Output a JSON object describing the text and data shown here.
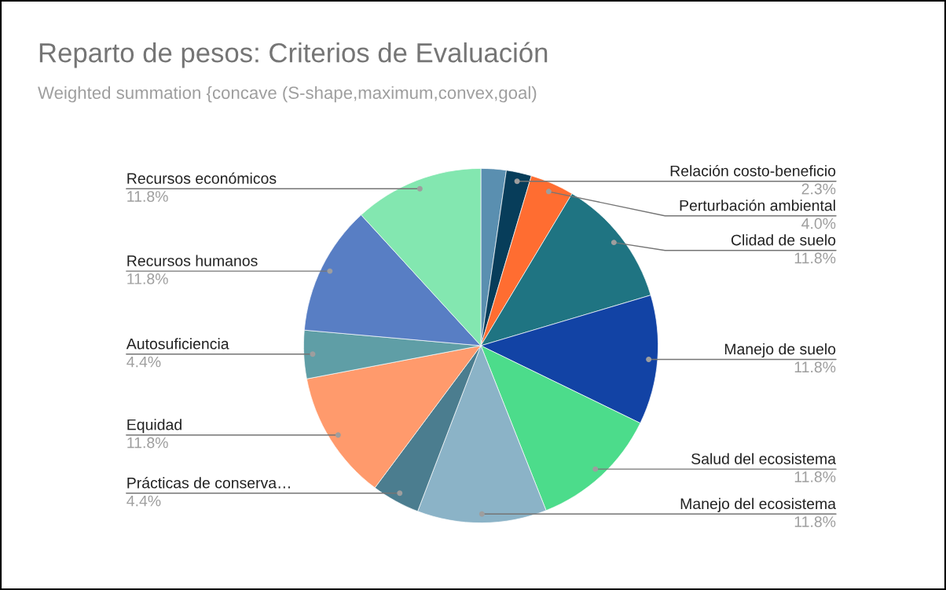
{
  "chart_data": {
    "type": "pie",
    "title": "Reparto de pesos: Criterios de Evaluación",
    "subtitle": "Weighted summation {concave (S-shape,maximum,convex,goal)",
    "categories": [
      null,
      "Relación costo-beneficio",
      "Perturbación ambiental",
      "Clidad de suelo",
      "Manejo de suelo",
      "Salud del ecosistema",
      "Manejo del ecosistema",
      "Prácticas de conserva…",
      "Equidad",
      "Autosuficiencia",
      "Recursos humanos",
      "Recursos económicos"
    ],
    "values": [
      2.3,
      2.3,
      4.0,
      11.8,
      11.8,
      11.8,
      11.8,
      4.4,
      11.8,
      4.4,
      11.8,
      11.8
    ],
    "colors": [
      "#5a8fb0",
      "#073d5a",
      "#ff6d31",
      "#1f7482",
      "#1243a5",
      "#4cdc8b",
      "#8bb3c7",
      "#4b7d8f",
      "#ff9a6c",
      "#5f9ea6",
      "#587ec4",
      "#83e7b0"
    ],
    "value_labels": [
      null,
      "2.3%",
      "4.0%",
      "11.8%",
      "11.8%",
      "11.8%",
      "11.8%",
      "4.4%",
      "11.8%",
      "4.4%",
      "11.8%",
      "11.8%"
    ]
  }
}
